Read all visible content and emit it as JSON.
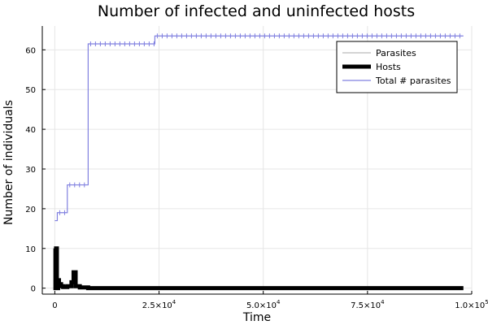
{
  "chart_data": {
    "type": "line",
    "title": "Number of infected and uninfected hosts",
    "xlabel": "Time",
    "ylabel": "Number of individuals",
    "xlim": [
      -3000,
      100000
    ],
    "ylim": [
      -1.5,
      66
    ],
    "grid": true,
    "legend_position": "top-right",
    "x_ticks": [
      {
        "value": 0,
        "label": "0"
      },
      {
        "value": 25000,
        "label": "2.5×10",
        "exp": "4"
      },
      {
        "value": 50000,
        "label": "5.0×10",
        "exp": "4"
      },
      {
        "value": 75000,
        "label": "7.5×10",
        "exp": "4"
      },
      {
        "value": 100000,
        "label": "1.0×10",
        "exp": "5"
      }
    ],
    "y_ticks": [
      {
        "value": 0,
        "label": "0"
      },
      {
        "value": 10,
        "label": "10"
      },
      {
        "value": 20,
        "label": "20"
      },
      {
        "value": 30,
        "label": "30"
      },
      {
        "value": 40,
        "label": "40"
      },
      {
        "value": 50,
        "label": "50"
      },
      {
        "value": 60,
        "label": "60"
      }
    ],
    "series": [
      {
        "name": "Parasites",
        "color": "#aaaaaa",
        "width": 1,
        "step": true,
        "x": [
          0,
          300,
          1000,
          2000,
          5000,
          8000,
          24000,
          98000
        ],
        "y": [
          10,
          2,
          1,
          0.5,
          0.3,
          0.2,
          0.1,
          0.1
        ]
      },
      {
        "name": "Hosts",
        "color": "#000000",
        "width": 5,
        "step": true,
        "x": [
          0,
          150,
          300,
          500,
          800,
          1000,
          1500,
          2000,
          3000,
          4000,
          4500,
          5000,
          6000,
          8000,
          12000,
          20000,
          24000,
          40000,
          60000,
          80000,
          98000
        ],
        "y": [
          10,
          0,
          10,
          0,
          2,
          1,
          0.5,
          0.3,
          0.5,
          1.5,
          4,
          0.5,
          0.2,
          0,
          0,
          0,
          0,
          0,
          0,
          0,
          0
        ]
      },
      {
        "name": "Total # parasites",
        "color": "#8080e0",
        "width": 1.2,
        "step": true,
        "markers": true,
        "x": [
          0,
          600,
          3000,
          8000,
          24000,
          98000
        ],
        "y": [
          17,
          19,
          26,
          61.5,
          63.5,
          63.5
        ]
      }
    ]
  }
}
